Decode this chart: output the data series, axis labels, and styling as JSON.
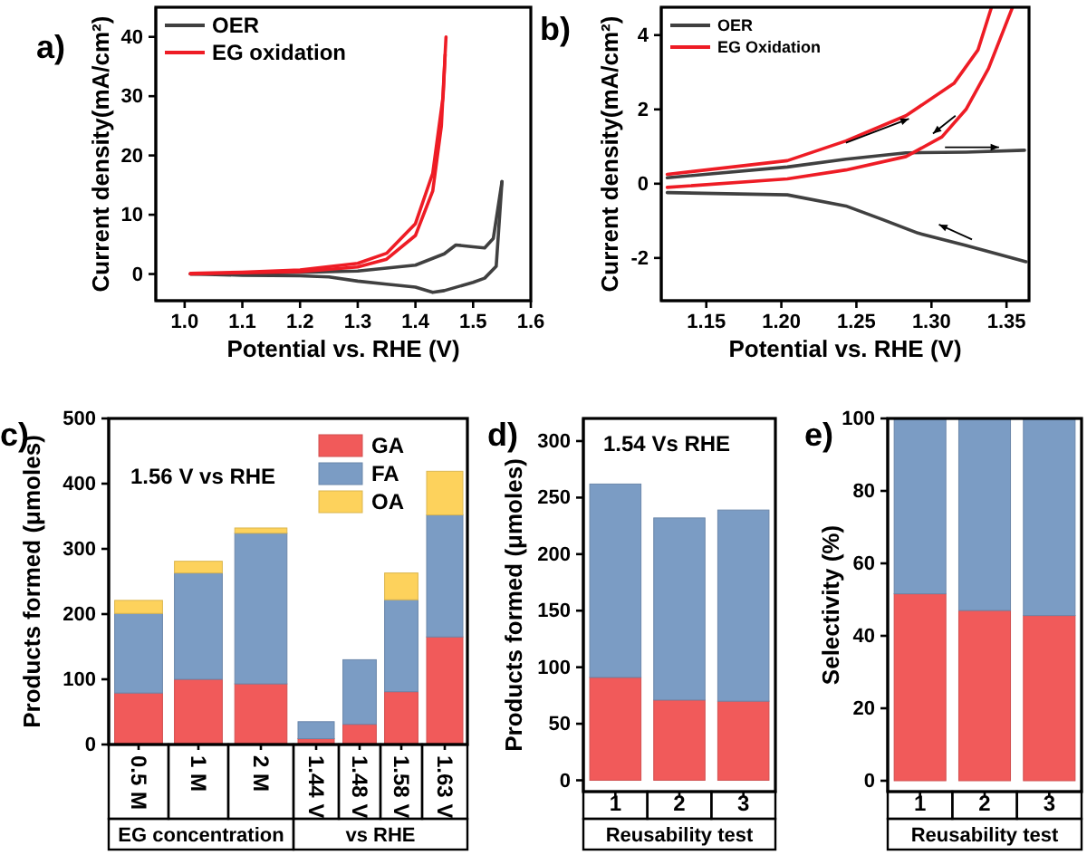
{
  "chart_data": [
    {
      "type": "line",
      "title": "a)",
      "xlabel": "Potential vs. RHE (V)",
      "ylabel": "Current density(mA/cm²)",
      "xlim": [
        0.95,
        1.6
      ],
      "ylim": [
        -4.5,
        45
      ],
      "xticks": [
        {
          "value": 1,
          "label": "1.0"
        },
        1.1,
        1.2,
        1.3,
        1.4,
        1.5,
        1.6
      ],
      "yticks": [
        0,
        10,
        20,
        30,
        40
      ],
      "legend": "top left",
      "line_style": "solid",
      "series": [
        {
          "name": "OER",
          "color": "#404040",
          "x": [
            1.01,
            1.1,
            1.2,
            1.3,
            1.4,
            1.45,
            1.47,
            1.5,
            1.52,
            1.535,
            1.55
          ],
          "values": [
            0,
            0.1,
            0.3,
            0.5,
            1.5,
            3.4,
            4.9,
            4.6,
            4.4,
            6,
            15.6
          ]
        },
        {
          "color": "#404040",
          "x": [
            1.01,
            1.1,
            1.2,
            1.25,
            1.3,
            1.35,
            1.4,
            1.43,
            1.45,
            1.5,
            1.52,
            1.54,
            1.55
          ],
          "values": [
            0,
            -0.2,
            -0.3,
            -0.5,
            -1.2,
            -1.7,
            -2.2,
            -3.1,
            -2.8,
            -1.4,
            -0.7,
            1.3,
            15.6
          ]
        },
        {
          "name": "EG oxidation",
          "color": "#ee1c25",
          "x": [
            1.01,
            1.1,
            1.2,
            1.3,
            1.35,
            1.4,
            1.43,
            1.445,
            1.453
          ],
          "values": [
            0,
            0.2,
            0.4,
            1.2,
            2.5,
            6.5,
            14,
            25,
            40
          ]
        },
        {
          "color": "#ee1c25",
          "x": [
            1.01,
            1.1,
            1.2,
            1.3,
            1.35,
            1.4,
            1.43,
            1.448,
            1.4515
          ],
          "values": [
            0.1,
            0.3,
            0.7,
            1.8,
            3.5,
            8.5,
            17,
            30,
            37
          ]
        }
      ]
    },
    {
      "type": "line",
      "title": "b)",
      "xlabel": "Potential vs. RHE (V)",
      "ylabel": "Current density(mA/cm²)",
      "xlim": [
        1.12,
        1.365
      ],
      "ylim": [
        -3.15,
        4.75
      ],
      "xticks": [
        1.15,
        {
          "value": 1.2,
          "label": "1.20"
        },
        1.25,
        {
          "value": 1.3,
          "label": "1.30"
        },
        1.35
      ],
      "yticks": [
        -2,
        0,
        2,
        4
      ],
      "legend": "top left",
      "line_style": "solid",
      "series": [
        {
          "name": "OER",
          "color": "#404040",
          "x": [
            1.124,
            1.204,
            1.243,
            1.283,
            1.323,
            1.362
          ],
          "values": [
            0.16,
            0.45,
            0.66,
            0.83,
            0.85,
            0.9
          ]
        },
        {
          "color": "#404040",
          "x": [
            1.124,
            1.204,
            1.243,
            1.267,
            1.291,
            1.323,
            1.363
          ],
          "values": [
            -0.24,
            -0.3,
            -0.6,
            -0.96,
            -1.33,
            -1.66,
            -2.1
          ]
        },
        {
          "name": "EG Oxidation",
          "color": "#ee1c25",
          "x": [
            1.124,
            1.204,
            1.243,
            1.283,
            1.315,
            1.331,
            1.34
          ],
          "values": [
            0.25,
            0.62,
            1.15,
            1.83,
            2.7,
            3.6,
            4.75
          ]
        },
        {
          "color": "#ee1c25",
          "x": [
            1.124,
            1.204,
            1.243,
            1.283,
            1.307,
            1.323,
            1.338,
            1.354
          ],
          "values": [
            -0.1,
            0.13,
            0.37,
            0.73,
            1.26,
            2.0,
            3.1,
            4.75
          ]
        }
      ]
    },
    {
      "type": "bar",
      "title": "c)",
      "ylabel": "Products formed (μmoles)",
      "categories": [
        "0.5 M",
        "1 M",
        "2 M",
        "1.44 V",
        "1.48 V",
        "1.58 V",
        "1.63 V"
      ],
      "stacked": true,
      "ylim": [
        0,
        500
      ],
      "yticks": [
        0,
        100,
        200,
        300,
        400,
        500
      ],
      "legend": "top right",
      "annotations": [
        "1.56 V vs RHE",
        "EG concentration",
        "vs RHE"
      ],
      "series": [
        {
          "name": "GA",
          "color": "#f15a5a",
          "values": [
            79,
            100,
            93,
            9,
            31,
            81,
            165
          ]
        },
        {
          "name": "FA",
          "color": "#7b9cc4",
          "values": [
            122,
            163,
            231,
            26,
            99,
            141,
            187
          ]
        },
        {
          "name": "OA",
          "color": "#fdd25c",
          "values": [
            20,
            18,
            8,
            0,
            0,
            41,
            67
          ]
        }
      ]
    },
    {
      "type": "bar",
      "title": "d)",
      "ylabel": "Products formed (μmoles)",
      "xlabel": "Reusability test",
      "categories": [
        "1",
        "2",
        "3"
      ],
      "stacked": true,
      "ylim": [
        -10,
        320
      ],
      "yticks": [
        0,
        50,
        100,
        150,
        200,
        250,
        300
      ],
      "annotations": [
        "1.54 Vs RHE"
      ],
      "series": [
        {
          "color": "#f15a5a",
          "values": [
            91,
            71,
            70
          ]
        },
        {
          "color": "#7b9cc4",
          "values": [
            171,
            161,
            169
          ]
        }
      ]
    },
    {
      "type": "bar",
      "title": "e)",
      "ylabel": "Selectivity (%)",
      "xlabel": "Reusability test",
      "categories": [
        "1",
        "2",
        "3"
      ],
      "stacked": true,
      "ylim": [
        -3,
        100
      ],
      "yticks": [
        0,
        20,
        40,
        60,
        80,
        100
      ],
      "series": [
        {
          "color": "#f15a5a",
          "values": [
            51.6,
            47,
            45.6
          ]
        },
        {
          "color": "#7b9cc4",
          "values": [
            48.4,
            53,
            54.4
          ]
        }
      ]
    }
  ]
}
